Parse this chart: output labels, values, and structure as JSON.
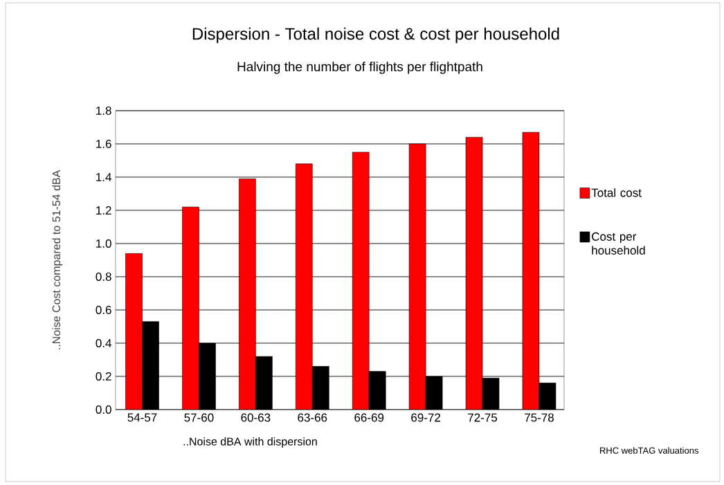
{
  "chart_data": {
    "type": "bar",
    "title": "Dispersion - Total noise cost & cost per household",
    "subtitle": "Halving the number of flights per flightpath",
    "xlabel": "..Noise dBA with dispersion",
    "ylabel": "..Noise Cost compared to 51-54 dBA",
    "categories": [
      "54-57",
      "57-60",
      "60-63",
      "63-66",
      "66-69",
      "69-72",
      "72-75",
      "75-78"
    ],
    "series": [
      {
        "name": "Total cost",
        "color": "#ff0000",
        "values": [
          0.94,
          1.22,
          1.39,
          1.48,
          1.55,
          1.6,
          1.64,
          1.67
        ]
      },
      {
        "name": "Cost per household",
        "color": "#000000",
        "values": [
          0.53,
          0.4,
          0.32,
          0.26,
          0.23,
          0.2,
          0.19,
          0.16
        ]
      }
    ],
    "ylim": [
      0,
      1.8
    ],
    "yticks": [
      {
        "value": 0,
        "label": "0.0"
      },
      {
        "value": 0.2,
        "label": "0.2"
      },
      {
        "value": 0.4,
        "label": "0.4"
      },
      {
        "value": 0.6,
        "label": "0.6"
      },
      {
        "value": 0.8,
        "label": "0.8"
      },
      {
        "value": 1.0,
        "label": "1.0"
      },
      {
        "value": 1.2,
        "label": "1.2"
      },
      {
        "value": 1.4,
        "label": "1.4"
      },
      {
        "value": 1.6,
        "label": "1.6"
      },
      {
        "value": 1.8,
        "label": "1.8"
      }
    ],
    "grid": "y",
    "legend": "right",
    "annotations": [
      "RHC webTAG valuations"
    ]
  }
}
